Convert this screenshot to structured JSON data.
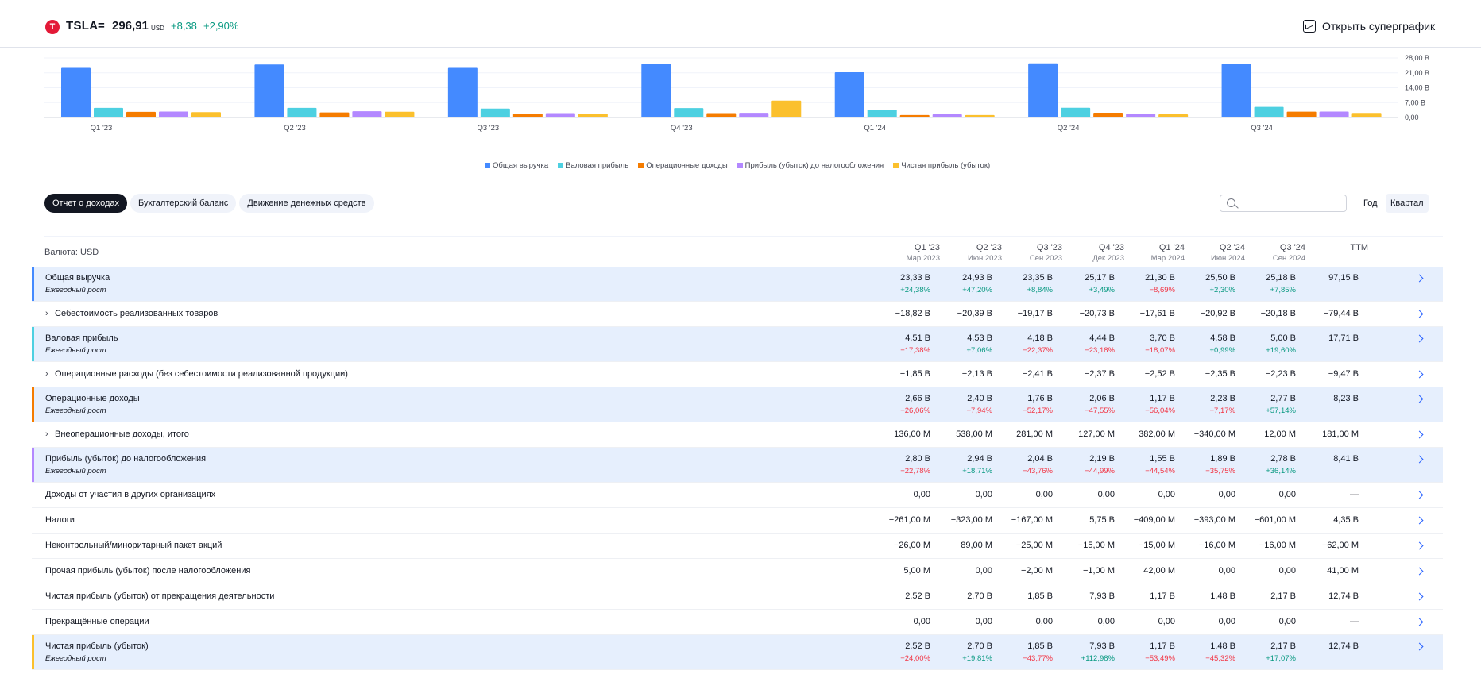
{
  "header": {
    "logo": "T",
    "ticker": "TSLA",
    "eq": "=",
    "price": "296,91",
    "currency": "USD",
    "change": "+8,38",
    "change_pct": "+2,90%",
    "superchart_label": "Открыть суперграфик"
  },
  "chart_data": {
    "type": "bar",
    "categories": [
      "Q1 '23",
      "Q2 '23",
      "Q3 '23",
      "Q4 '23",
      "Q1 '24",
      "Q2 '24",
      "Q3 '24"
    ],
    "series": [
      {
        "name": "Общая выручка",
        "color": "#448aff",
        "values": [
          23.33,
          24.93,
          23.35,
          25.17,
          21.3,
          25.5,
          25.18
        ]
      },
      {
        "name": "Валовая прибыль",
        "color": "#4dd0e1",
        "values": [
          4.51,
          4.53,
          4.18,
          4.44,
          3.7,
          4.58,
          5.0
        ]
      },
      {
        "name": "Операционные доходы",
        "color": "#f57c00",
        "values": [
          2.66,
          2.4,
          1.76,
          2.06,
          1.17,
          2.23,
          2.77
        ]
      },
      {
        "name": "Прибыль (убыток) до налогообложения",
        "color": "#b388ff",
        "values": [
          2.8,
          2.94,
          2.04,
          2.19,
          1.55,
          1.89,
          2.78
        ]
      },
      {
        "name": "Чистая прибыль (убыток)",
        "color": "#fbc02d",
        "values": [
          2.52,
          2.7,
          1.85,
          7.93,
          1.17,
          1.48,
          2.17
        ]
      }
    ],
    "y_ticks": [
      "28,00 B",
      "21,00 B",
      "14,00 B",
      "7,00 B",
      "0,00"
    ],
    "ylim": [
      0,
      28
    ],
    "legend_position": "bottom",
    "grid": true
  },
  "tabs": {
    "income": "Отчет о доходах",
    "balance": "Бухгалтерский баланс",
    "cashflow": "Движение денежных средств"
  },
  "period": {
    "year": "Год",
    "quarter": "Квартал"
  },
  "table": {
    "currency_label": "Валюта: USD",
    "columns": [
      {
        "q": "Q1 '23",
        "d": "Мар 2023"
      },
      {
        "q": "Q2 '23",
        "d": "Июн 2023"
      },
      {
        "q": "Q3 '23",
        "d": "Сен 2023"
      },
      {
        "q": "Q4 '23",
        "d": "Дек 2023"
      },
      {
        "q": "Q1 '24",
        "d": "Мар 2024"
      },
      {
        "q": "Q2 '24",
        "d": "Июн 2024"
      },
      {
        "q": "Q3 '24",
        "d": "Сен 2024"
      },
      {
        "q": "TTM",
        "d": ""
      }
    ],
    "growth_label": "Ежегодный рост",
    "rows": [
      {
        "label": "Общая выручка",
        "color": "#448aff",
        "highlight": true,
        "expand": false,
        "values": [
          "23,33 B",
          "24,93 B",
          "23,35 B",
          "25,17 B",
          "21,30 B",
          "25,50 B",
          "25,18 B",
          "97,15 B"
        ],
        "growth": [
          "+24,38%",
          "+47,20%",
          "+8,84%",
          "+3,49%",
          "−8,69%",
          "+2,30%",
          "+7,85%"
        ]
      },
      {
        "label": "Себестоимость реализованных товаров",
        "highlight": false,
        "expand": true,
        "values": [
          "−18,82 B",
          "−20,39 B",
          "−19,17 B",
          "−20,73 B",
          "−17,61 B",
          "−20,92 B",
          "−20,18 B",
          "−79,44 B"
        ]
      },
      {
        "label": "Валовая прибыль",
        "color": "#4dd0e1",
        "highlight": true,
        "expand": false,
        "values": [
          "4,51 B",
          "4,53 B",
          "4,18 B",
          "4,44 B",
          "3,70 B",
          "4,58 B",
          "5,00 B",
          "17,71 B"
        ],
        "growth": [
          "−17,38%",
          "+7,06%",
          "−22,37%",
          "−23,18%",
          "−18,07%",
          "+0,99%",
          "+19,60%"
        ]
      },
      {
        "label": "Операционные расходы (без себестоимости реализованной продукции)",
        "highlight": false,
        "expand": true,
        "values": [
          "−1,85 B",
          "−2,13 B",
          "−2,41 B",
          "−2,37 B",
          "−2,52 B",
          "−2,35 B",
          "−2,23 B",
          "−9,47 B"
        ]
      },
      {
        "label": "Операционные доходы",
        "color": "#f57c00",
        "highlight": true,
        "expand": false,
        "values": [
          "2,66 B",
          "2,40 B",
          "1,76 B",
          "2,06 B",
          "1,17 B",
          "2,23 B",
          "2,77 B",
          "8,23 B"
        ],
        "growth": [
          "−26,06%",
          "−7,94%",
          "−52,17%",
          "−47,55%",
          "−56,04%",
          "−7,17%",
          "+57,14%"
        ]
      },
      {
        "label": "Внеоперационные доходы, итого",
        "highlight": false,
        "expand": true,
        "values": [
          "136,00 M",
          "538,00 M",
          "281,00 M",
          "127,00 M",
          "382,00 M",
          "−340,00 M",
          "12,00 M",
          "181,00 M"
        ]
      },
      {
        "label": "Прибыль (убыток) до налогообложения",
        "color": "#b388ff",
        "highlight": true,
        "expand": false,
        "values": [
          "2,80 B",
          "2,94 B",
          "2,04 B",
          "2,19 B",
          "1,55 B",
          "1,89 B",
          "2,78 B",
          "8,41 B"
        ],
        "growth": [
          "−22,78%",
          "+18,71%",
          "−43,76%",
          "−44,99%",
          "−44,54%",
          "−35,75%",
          "+36,14%"
        ]
      },
      {
        "label": "Доходы от участия в других организациях",
        "highlight": false,
        "expand": false,
        "values": [
          "0,00",
          "0,00",
          "0,00",
          "0,00",
          "0,00",
          "0,00",
          "0,00",
          "—"
        ]
      },
      {
        "label": "Налоги",
        "highlight": false,
        "expand": false,
        "values": [
          "−261,00 M",
          "−323,00 M",
          "−167,00 M",
          "5,75 B",
          "−409,00 M",
          "−393,00 M",
          "−601,00 M",
          "4,35 B"
        ]
      },
      {
        "label": "Неконтрольный/миноритарный пакет акций",
        "highlight": false,
        "expand": false,
        "values": [
          "−26,00 M",
          "89,00 M",
          "−25,00 M",
          "−15,00 M",
          "−15,00 M",
          "−16,00 M",
          "−16,00 M",
          "−62,00 M"
        ]
      },
      {
        "label": "Прочая прибыль (убыток) после налогообложения",
        "highlight": false,
        "expand": false,
        "values": [
          "5,00 M",
          "0,00",
          "−2,00 M",
          "−1,00 M",
          "42,00 M",
          "0,00",
          "0,00",
          "41,00 M"
        ]
      },
      {
        "label": "Чистая прибыль (убыток) от прекращения деятельности",
        "highlight": false,
        "expand": false,
        "values": [
          "2,52 B",
          "2,70 B",
          "1,85 B",
          "7,93 B",
          "1,17 B",
          "1,48 B",
          "2,17 B",
          "12,74 B"
        ]
      },
      {
        "label": "Прекращённые операции",
        "highlight": false,
        "expand": false,
        "values": [
          "0,00",
          "0,00",
          "0,00",
          "0,00",
          "0,00",
          "0,00",
          "0,00",
          "—"
        ]
      },
      {
        "label": "Чистая прибыль (убыток)",
        "color": "#fbc02d",
        "highlight": true,
        "expand": false,
        "values": [
          "2,52 B",
          "2,70 B",
          "1,85 B",
          "7,93 B",
          "1,17 B",
          "1,48 B",
          "2,17 B",
          "12,74 B"
        ],
        "growth": [
          "−24,00%",
          "+19,81%",
          "−43,77%",
          "+112,98%",
          "−53,49%",
          "−45,32%",
          "+17,07%"
        ]
      }
    ]
  }
}
